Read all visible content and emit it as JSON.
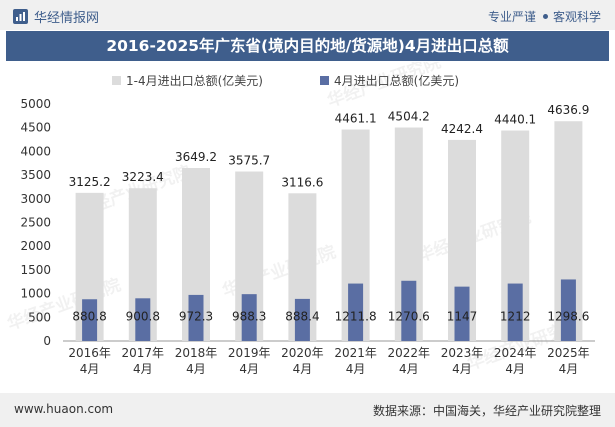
{
  "header": {
    "brand": "华经情报网",
    "tagline_a": "专业严谨",
    "tagline_b": "客观科学",
    "title": "2016-2025年广东省(境内目的地/货源地)4月进出口总额"
  },
  "footer": {
    "site": "www.huaon.com",
    "source": "数据来源：中国海关，华经产业研究院整理"
  },
  "watermark": "华经产业研究院",
  "chart_data": {
    "type": "bar",
    "title": "2016-2025年广东省(境内目的地/货源地)4月进出口总额",
    "categories": [
      "2016年\n4月",
      "2017年\n4月",
      "2018年\n4月",
      "2019年\n4月",
      "2020年\n4月",
      "2021年\n4月",
      "2022年\n4月",
      "2023年\n4月",
      "2024年\n4月",
      "2025年\n4月"
    ],
    "series": [
      {
        "name": "1-4月进出口总额(亿美元)",
        "color": "#dcdcdc",
        "values": [
          3125.2,
          3223.4,
          3649.2,
          3575.7,
          3116.6,
          4461.1,
          4504.2,
          4242.4,
          4440.1,
          4636.9
        ],
        "labels": [
          "3125.2",
          "3223.4",
          "3649.2",
          "3575.7",
          "3116.6",
          "4461.1",
          "4504.2",
          "4242.4",
          "4440.1",
          "4636.9"
        ]
      },
      {
        "name": "4月进出口总额(亿美元)",
        "color": "#5a6ea3",
        "values": [
          880.8,
          900.8,
          972.3,
          988.3,
          888.4,
          1211.8,
          1270.6,
          1147,
          1212,
          1298.6
        ],
        "labels": [
          "880.8",
          "900.8",
          "972.3",
          "988.3",
          "888.4",
          "1211.8",
          "1270.6",
          "1147",
          "1212",
          "1298.6"
        ]
      }
    ],
    "ylim": [
      0,
      5000
    ],
    "yticks": [
      "0",
      "500",
      "1000",
      "1500",
      "2000",
      "2500",
      "3000",
      "3500",
      "4000",
      "4500",
      "5000"
    ],
    "grid": false,
    "legend_position": "top-center"
  }
}
